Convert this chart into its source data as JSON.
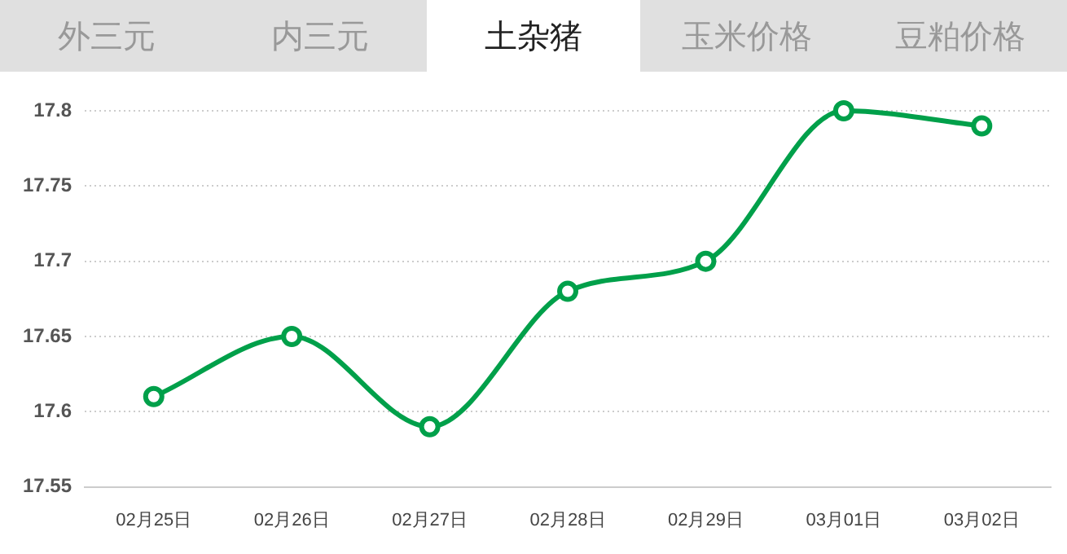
{
  "chart_data": {
    "type": "line",
    "title": "土杂猪",
    "annotations": [
      "外三元",
      "内三元",
      "玉米价格",
      "豆粕价格"
    ],
    "categories": [
      "02月25日",
      "02月26日",
      "02月27日",
      "02月28日",
      "02月29日",
      "03月01日",
      "03月02日"
    ],
    "series": [
      {
        "color": "#00a04a",
        "values": [
          17.61,
          17.65,
          17.59,
          17.68,
          17.7,
          17.8,
          17.79
        ]
      }
    ],
    "ylim": [
      17.55,
      17.8
    ],
    "yticks": [
      17.55,
      17.6,
      17.65,
      17.7,
      17.75,
      17.8
    ],
    "grid": "y",
    "legend": false,
    "marker": "circle",
    "line_style": "solid"
  }
}
